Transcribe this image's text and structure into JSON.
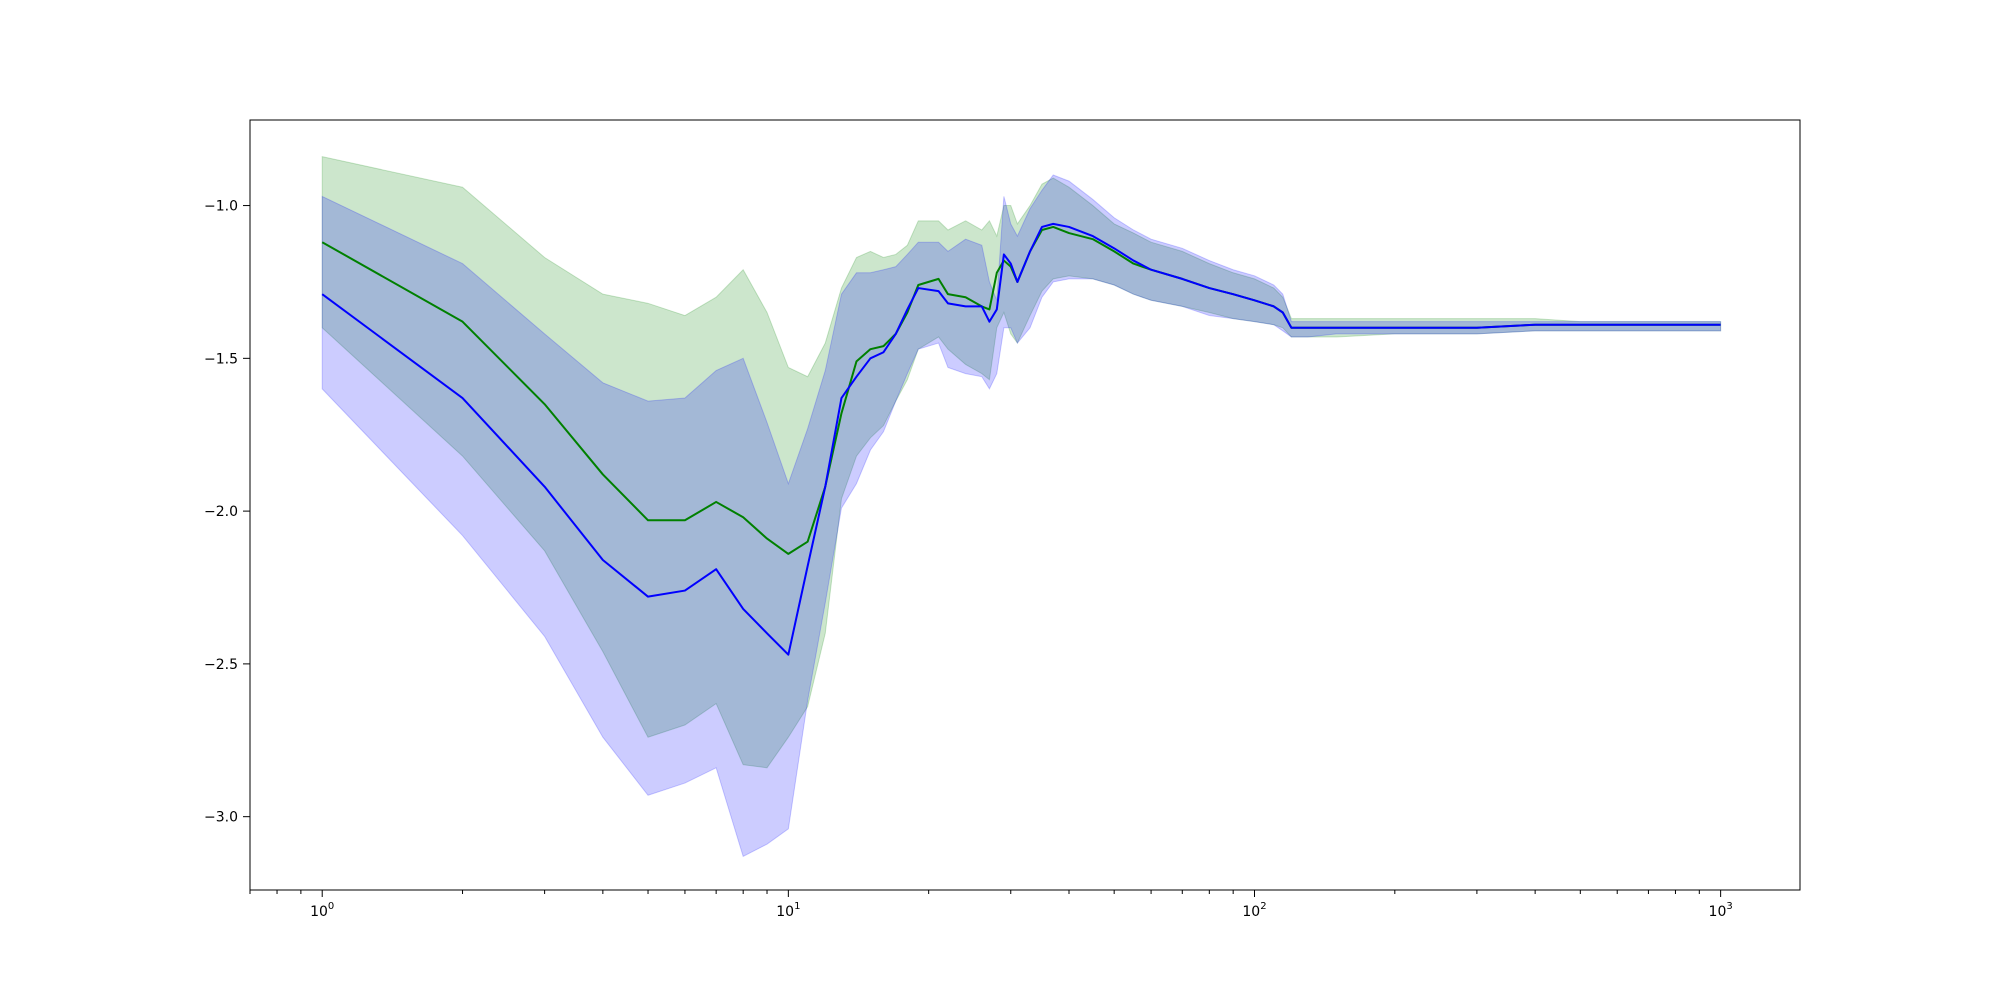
{
  "chart_data": {
    "type": "line",
    "title": "",
    "xlabel": "",
    "ylabel": "",
    "x_scale": "log",
    "xlim": [
      0.7,
      1480
    ],
    "ylim": [
      -3.24,
      -0.72
    ],
    "grid": false,
    "legend": "none",
    "x_ticks": [
      {
        "value": 1,
        "base": "10",
        "exp": "0"
      },
      {
        "value": 10,
        "base": "10",
        "exp": "1"
      },
      {
        "value": 100,
        "base": "10",
        "exp": "2"
      },
      {
        "value": 1000,
        "base": "10",
        "exp": "3"
      }
    ],
    "y_ticks": [
      {
        "value": -1.0,
        "label": "−1.0"
      },
      {
        "value": -1.5,
        "label": "−1.5"
      },
      {
        "value": -2.0,
        "label": "−2.0"
      },
      {
        "value": -2.5,
        "label": "−2.5"
      },
      {
        "value": -3.0,
        "label": "−3.0"
      }
    ],
    "series": [
      {
        "color": "#008000",
        "band_color": "#008000",
        "band_opacity": 0.2,
        "x": [
          1,
          2,
          3,
          4,
          5,
          6,
          7,
          8,
          9,
          10,
          11,
          12,
          13,
          14,
          15,
          16,
          17,
          18,
          19,
          21,
          22,
          24,
          26,
          27,
          28,
          29,
          30,
          31,
          33,
          35,
          37,
          40,
          45,
          50,
          55,
          60,
          70,
          80,
          90,
          100,
          110,
          115,
          120,
          130,
          150,
          200,
          300,
          400,
          500,
          700,
          1000
        ],
        "mean": [
          -1.12,
          -1.38,
          -1.65,
          -1.88,
          -2.03,
          -2.03,
          -1.97,
          -2.02,
          -2.09,
          -2.14,
          -2.1,
          -1.92,
          -1.68,
          -1.51,
          -1.47,
          -1.46,
          -1.42,
          -1.35,
          -1.26,
          -1.24,
          -1.29,
          -1.3,
          -1.33,
          -1.34,
          -1.22,
          -1.18,
          -1.2,
          -1.25,
          -1.15,
          -1.08,
          -1.07,
          -1.09,
          -1.11,
          -1.15,
          -1.19,
          -1.21,
          -1.24,
          -1.27,
          -1.29,
          -1.31,
          -1.33,
          -1.35,
          -1.4,
          -1.4,
          -1.4,
          -1.4,
          -1.4,
          -1.39,
          -1.39,
          -1.39,
          -1.39
        ],
        "upper": [
          -0.84,
          -0.94,
          -1.17,
          -1.29,
          -1.32,
          -1.36,
          -1.3,
          -1.21,
          -1.35,
          -1.53,
          -1.56,
          -1.45,
          -1.27,
          -1.17,
          -1.15,
          -1.17,
          -1.16,
          -1.13,
          -1.05,
          -1.05,
          -1.08,
          -1.05,
          -1.08,
          -1.05,
          -1.1,
          -1.0,
          -1.0,
          -1.06,
          -1.0,
          -0.93,
          -0.91,
          -0.94,
          -1.0,
          -1.06,
          -1.09,
          -1.12,
          -1.15,
          -1.19,
          -1.22,
          -1.24,
          -1.27,
          -1.3,
          -1.37,
          -1.37,
          -1.37,
          -1.37,
          -1.37,
          -1.37,
          -1.38,
          -1.38,
          -1.38
        ],
        "lower": [
          -1.4,
          -1.82,
          -2.13,
          -2.46,
          -2.74,
          -2.7,
          -2.63,
          -2.83,
          -2.84,
          -2.74,
          -2.64,
          -2.4,
          -1.96,
          -1.82,
          -1.76,
          -1.72,
          -1.64,
          -1.57,
          -1.47,
          -1.43,
          -1.47,
          -1.52,
          -1.55,
          -1.57,
          -1.4,
          -1.35,
          -1.42,
          -1.45,
          -1.36,
          -1.28,
          -1.24,
          -1.23,
          -1.24,
          -1.26,
          -1.29,
          -1.31,
          -1.33,
          -1.35,
          -1.37,
          -1.38,
          -1.39,
          -1.4,
          -1.43,
          -1.43,
          -1.43,
          -1.42,
          -1.42,
          -1.41,
          -1.41,
          -1.41,
          -1.41
        ]
      },
      {
        "color": "#0000ff",
        "band_color": "#0000ff",
        "band_opacity": 0.2,
        "x": [
          1,
          2,
          3,
          4,
          5,
          6,
          7,
          8,
          9,
          10,
          11,
          12,
          13,
          14,
          15,
          16,
          17,
          18,
          19,
          21,
          22,
          24,
          26,
          27,
          28,
          29,
          30,
          31,
          33,
          35,
          37,
          40,
          45,
          50,
          55,
          60,
          70,
          80,
          90,
          100,
          110,
          115,
          120,
          130,
          150,
          200,
          300,
          400,
          500,
          700,
          1000
        ],
        "mean": [
          -1.29,
          -1.63,
          -1.92,
          -2.16,
          -2.28,
          -2.26,
          -2.19,
          -2.32,
          -2.4,
          -2.47,
          -2.18,
          -1.92,
          -1.63,
          -1.56,
          -1.5,
          -1.48,
          -1.42,
          -1.34,
          -1.27,
          -1.28,
          -1.32,
          -1.33,
          -1.33,
          -1.38,
          -1.34,
          -1.16,
          -1.19,
          -1.25,
          -1.15,
          -1.07,
          -1.06,
          -1.07,
          -1.1,
          -1.14,
          -1.18,
          -1.21,
          -1.24,
          -1.27,
          -1.29,
          -1.31,
          -1.33,
          -1.35,
          -1.4,
          -1.4,
          -1.4,
          -1.4,
          -1.4,
          -1.39,
          -1.39,
          -1.39,
          -1.39
        ],
        "upper": [
          -0.97,
          -1.19,
          -1.42,
          -1.58,
          -1.64,
          -1.63,
          -1.54,
          -1.5,
          -1.71,
          -1.91,
          -1.73,
          -1.54,
          -1.29,
          -1.22,
          -1.22,
          -1.21,
          -1.2,
          -1.16,
          -1.12,
          -1.12,
          -1.15,
          -1.11,
          -1.13,
          -1.25,
          -1.31,
          -0.97,
          -1.06,
          -1.1,
          -1.01,
          -0.95,
          -0.9,
          -0.92,
          -0.98,
          -1.04,
          -1.08,
          -1.11,
          -1.14,
          -1.18,
          -1.21,
          -1.23,
          -1.26,
          -1.29,
          -1.38,
          -1.38,
          -1.38,
          -1.38,
          -1.38,
          -1.38,
          -1.38,
          -1.38,
          -1.38
        ],
        "lower": [
          -1.6,
          -2.08,
          -2.41,
          -2.74,
          -2.93,
          -2.89,
          -2.84,
          -3.13,
          -3.09,
          -3.04,
          -2.62,
          -2.3,
          -1.99,
          -1.91,
          -1.8,
          -1.74,
          -1.64,
          -1.55,
          -1.47,
          -1.45,
          -1.53,
          -1.55,
          -1.56,
          -1.6,
          -1.55,
          -1.4,
          -1.4,
          -1.45,
          -1.4,
          -1.3,
          -1.25,
          -1.24,
          -1.24,
          -1.26,
          -1.29,
          -1.31,
          -1.33,
          -1.36,
          -1.37,
          -1.38,
          -1.39,
          -1.41,
          -1.43,
          -1.43,
          -1.42,
          -1.42,
          -1.42,
          -1.41,
          -1.41,
          -1.41,
          -1.41
        ]
      }
    ]
  }
}
